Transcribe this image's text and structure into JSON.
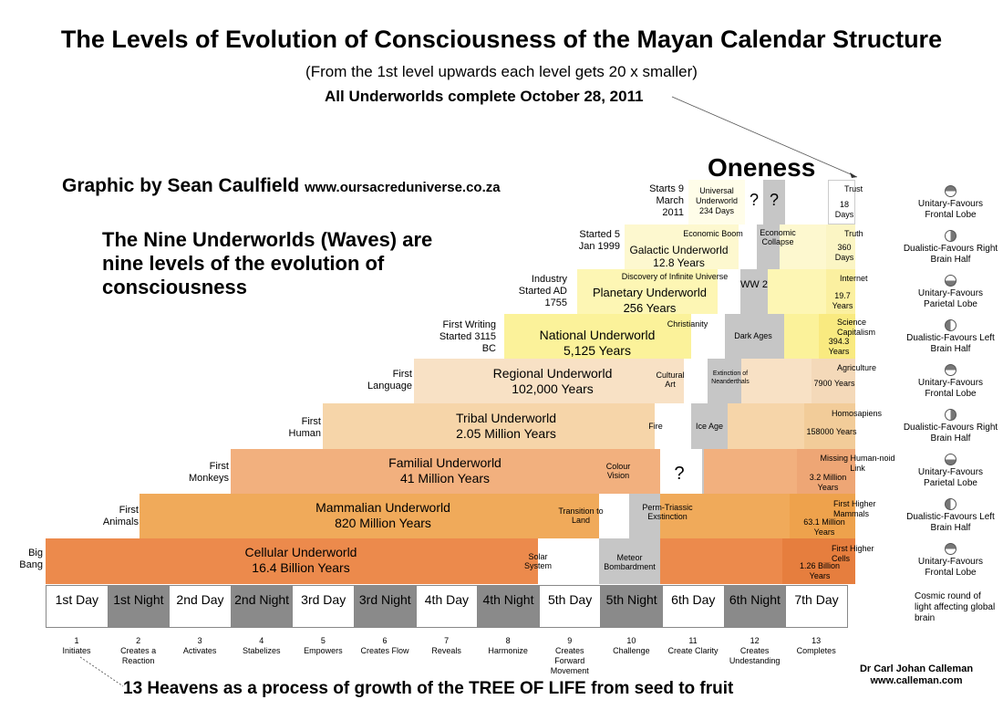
{
  "title": "The Levels of Evolution of Consciousness of the Mayan Calendar Structure",
  "subtitle": "(From the 1st level upwards each level gets 20 x smaller)",
  "complete_note": "All Underworlds complete October 28, 2011",
  "credit": {
    "text": "Graphic by Sean Caulfield",
    "url": "www.oursacreduniverse.co.za"
  },
  "nine_underworlds": "The Nine Underworlds (Waves) are nine levels of the evolution of consciousness",
  "oneness": "Oneness",
  "bottom_caption": "13 Heavens as a process of growth of the TREE OF LIFE from seed to fruit",
  "author": {
    "name": "Dr Carl Johan Calleman",
    "url": "www.calleman.com"
  },
  "colors": {
    "cellular": "#ec8a4c",
    "mammalian": "#f0aa5a",
    "familial": "#f2b07e",
    "tribal": "#f6d5a9",
    "regional": "#f8e1c5",
    "national": "#fbf29a",
    "planetary": "#fdf6b4",
    "galactic": "#fdf8cf",
    "universal": "#fffde9",
    "grey": "#c6c6c6"
  },
  "underworlds": [
    {
      "name": "Cellular Underworld",
      "span": "16.4 Billion Years",
      "start": "Big Bang"
    },
    {
      "name": "Mammalian Underworld",
      "span": "820 Million Years",
      "start": "First Animals"
    },
    {
      "name": "Familial Underworld",
      "span": "41 Million Years",
      "start": "First Monkeys"
    },
    {
      "name": "Tribal Underworld",
      "span": "2.05 Million Years",
      "start": "First Human"
    },
    {
      "name": "Regional Underworld",
      "span": "102,000 Years",
      "start": "First Language"
    },
    {
      "name": "National Underworld",
      "span": "5,125 Years",
      "start": "First Writing Started 3115 BC"
    },
    {
      "name": "Planetary Underworld",
      "span": "256  Years",
      "start": "Industry Started AD 1755"
    },
    {
      "name": "Galactic Underworld",
      "span": "12.8 Years",
      "start": "Started 5 Jan 1999"
    },
    {
      "name": "Universal Underworld",
      "span": "234 Days",
      "start": "Starts 9 March 2011"
    }
  ],
  "events": {
    "solar_system": "Solar System",
    "meteor": "Meteor Bombardment",
    "transition": "Transition to Land",
    "perm": "Perm-Triassic Exstinction",
    "colour": "Colour Vision",
    "q": "?",
    "fire": "Fire",
    "ice": "Ice Age",
    "cultural": "Cultural Art",
    "neander": "Extinction of Neanderthals",
    "christianity": "Christianity",
    "dark": "Dark Ages",
    "discovery": "Discovery of Infinite Universe",
    "ww2": "WW 2",
    "boom": "Economic Boom",
    "collapse": "Economic Collapse"
  },
  "right_labels": [
    {
      "title": "First Higher Cells",
      "dur": "1.26 Billion Years"
    },
    {
      "title": "First Higher Mammals",
      "dur": "63.1 Million Years"
    },
    {
      "title": "Missing Human-noid Link",
      "dur": "3.2 Million Years"
    },
    {
      "title": "Homosapiens",
      "dur": "158000 Years"
    },
    {
      "title": "Agriculture",
      "dur": "7900 Years"
    },
    {
      "title": "Science Capitalism",
      "dur": "394.3 Years"
    },
    {
      "title": "Internet",
      "dur": "19.7 Years"
    },
    {
      "title": "Truth",
      "dur": "360 Days"
    },
    {
      "title": "Trust",
      "dur": "18 Days"
    }
  ],
  "days": [
    "1st Day",
    "1st Night",
    "2nd Day",
    "2nd Night",
    "3rd Day",
    "3rd Night",
    "4th Day",
    "4th Night",
    "5th Day",
    "5th Night",
    "6th Day",
    "6th Night",
    "7th Day"
  ],
  "heavens": [
    {
      "n": "1",
      "t": "Initiates"
    },
    {
      "n": "2",
      "t": "Creates a Reaction"
    },
    {
      "n": "3",
      "t": "Activates"
    },
    {
      "n": "4",
      "t": "Stabelizes"
    },
    {
      "n": "5",
      "t": "Empowers"
    },
    {
      "n": "6",
      "t": "Creates Flow"
    },
    {
      "n": "7",
      "t": "Reveals"
    },
    {
      "n": "8",
      "t": "Harmonize"
    },
    {
      "n": "9",
      "t": "Creates Forward Movement"
    },
    {
      "n": "10",
      "t": "Challenge"
    },
    {
      "n": "11",
      "t": "Create Clarity"
    },
    {
      "n": "12",
      "t": "Creates Undestanding"
    },
    {
      "n": "13",
      "t": "Completes"
    }
  ],
  "brain": [
    {
      "t": "Unitary-Favours Frontal Lobe",
      "icon": "frontal"
    },
    {
      "t": "Dualistic-Favours Right Brain Half",
      "icon": "right"
    },
    {
      "t": "Unitary-Favours Parietal Lobe",
      "icon": "parietal"
    },
    {
      "t": "Dualistic-Favours Left Brain Half",
      "icon": "left"
    },
    {
      "t": "Unitary-Favours Frontal Lobe",
      "icon": "frontal"
    },
    {
      "t": "Dualistic-Favours Right Brain Half",
      "icon": "right"
    },
    {
      "t": "Unitary-Favours Parietal Lobe",
      "icon": "parietal"
    },
    {
      "t": "Dualistic-Favours Left Brain Half",
      "icon": "left"
    },
    {
      "t": "Unitary-Favours Frontal Lobe",
      "icon": "frontal"
    }
  ],
  "cosmic_round": "Cosmic round of light affecting global brain"
}
